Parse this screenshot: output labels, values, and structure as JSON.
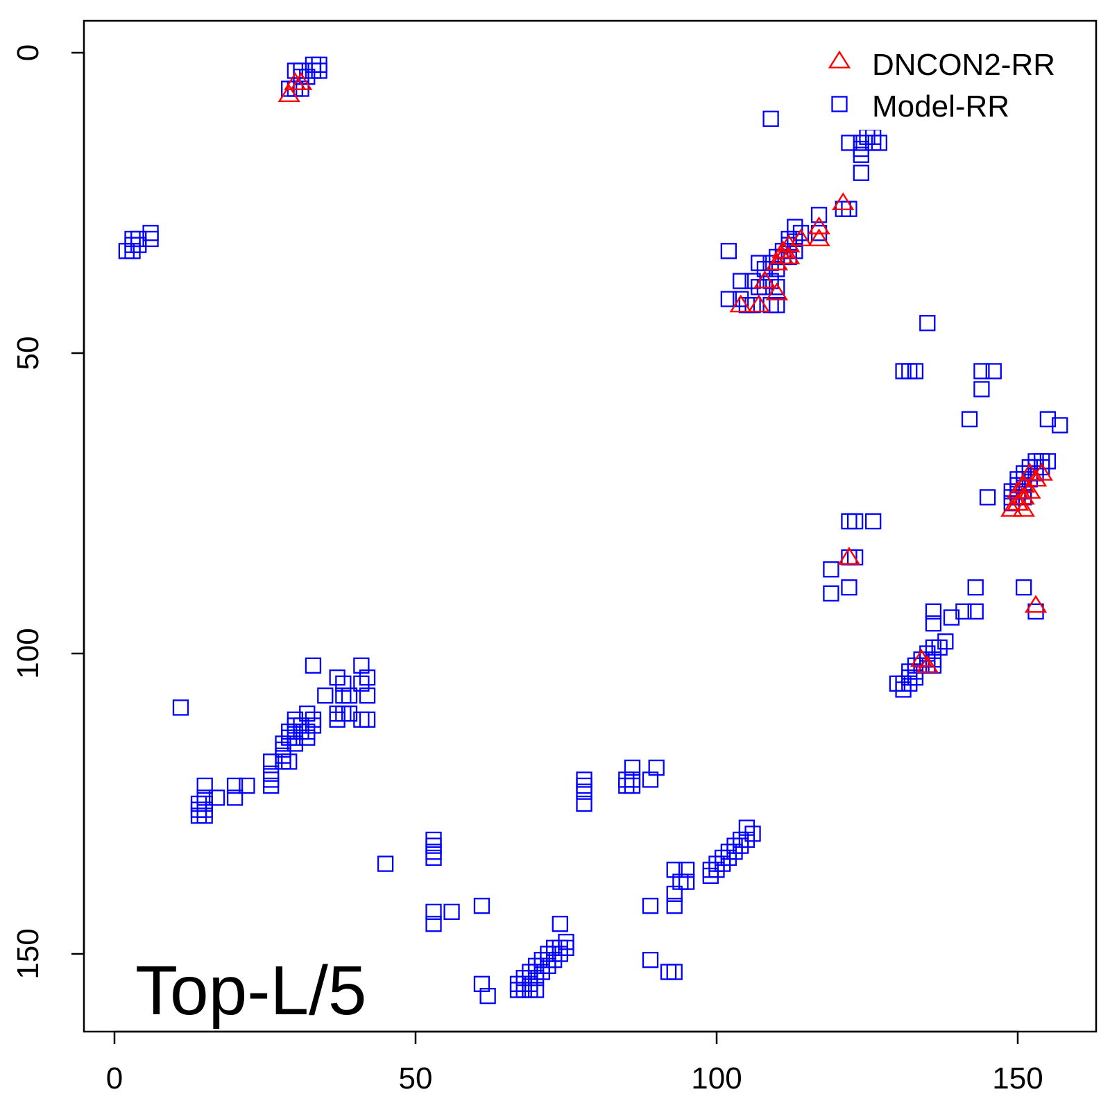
{
  "chart_data": {
    "type": "scatter",
    "title": "",
    "xlabel": "",
    "ylabel": "",
    "xlim": [
      -5,
      159
    ],
    "ylim": [
      163,
      -5
    ],
    "y_axis_inverted": true,
    "x_ticks": [
      "0",
      "50",
      "100",
      "150"
    ],
    "y_ticks": [
      "0",
      "50",
      "100",
      "150"
    ],
    "annotation": "Top-L/5",
    "legend": {
      "position": "top-right",
      "entries": [
        "DNCON2-RR",
        "Model-RR"
      ]
    },
    "series": [
      {
        "name": "DNCON2-RR",
        "marker": "triangle",
        "color": "#ff0000",
        "points": [
          [
            30,
            5
          ],
          [
            31,
            5
          ],
          [
            29,
            7
          ],
          [
            121,
            25
          ],
          [
            117,
            29
          ],
          [
            117,
            31
          ],
          [
            114,
            31
          ],
          [
            112,
            32
          ],
          [
            111,
            33
          ],
          [
            111,
            34
          ],
          [
            112,
            34
          ],
          [
            110,
            35
          ],
          [
            108,
            38
          ],
          [
            110,
            40
          ],
          [
            104,
            42
          ],
          [
            107,
            42
          ],
          [
            152,
            70
          ],
          [
            154,
            70
          ],
          [
            153,
            71
          ],
          [
            151,
            72
          ],
          [
            150,
            73
          ],
          [
            152,
            73
          ],
          [
            151,
            74
          ],
          [
            150,
            75
          ],
          [
            149,
            76
          ],
          [
            151,
            76
          ],
          [
            122,
            84
          ],
          [
            153,
            92
          ],
          [
            134,
            101
          ],
          [
            135,
            102
          ]
        ]
      },
      {
        "name": "Model-RR",
        "marker": "square",
        "color": "#0000ff",
        "points": [
          [
            30,
            3
          ],
          [
            31,
            3
          ],
          [
            33,
            2
          ],
          [
            34,
            2
          ],
          [
            33,
            3
          ],
          [
            34,
            3
          ],
          [
            31,
            4
          ],
          [
            32,
            4
          ],
          [
            29,
            6
          ],
          [
            30,
            6
          ],
          [
            31,
            6
          ],
          [
            109,
            11
          ],
          [
            125,
            14
          ],
          [
            126,
            14
          ],
          [
            127,
            15
          ],
          [
            122,
            15
          ],
          [
            124,
            15
          ],
          [
            126,
            15
          ],
          [
            124,
            16
          ],
          [
            124,
            17
          ],
          [
            124,
            20
          ],
          [
            121,
            26
          ],
          [
            122,
            26
          ],
          [
            117,
            27
          ],
          [
            113,
            29
          ],
          [
            114,
            30
          ],
          [
            117,
            30
          ],
          [
            112,
            31
          ],
          [
            113,
            31
          ],
          [
            112,
            32
          ],
          [
            111,
            33
          ],
          [
            112,
            33
          ],
          [
            113,
            33
          ],
          [
            110,
            34
          ],
          [
            111,
            34
          ],
          [
            112,
            34
          ],
          [
            102,
            33
          ],
          [
            107,
            35
          ],
          [
            109,
            35
          ],
          [
            108,
            36
          ],
          [
            110,
            36
          ],
          [
            104,
            38
          ],
          [
            106,
            38
          ],
          [
            109,
            38
          ],
          [
            107,
            39
          ],
          [
            108,
            39
          ],
          [
            110,
            39
          ],
          [
            102,
            41
          ],
          [
            104,
            41
          ],
          [
            105,
            42
          ],
          [
            106,
            42
          ],
          [
            109,
            42
          ],
          [
            110,
            42
          ],
          [
            135,
            45
          ],
          [
            131,
            53
          ],
          [
            132,
            53
          ],
          [
            133,
            53
          ],
          [
            144,
            53
          ],
          [
            146,
            53
          ],
          [
            144,
            56
          ],
          [
            142,
            61
          ],
          [
            155,
            61
          ],
          [
            157,
            62
          ],
          [
            153,
            68
          ],
          [
            154,
            68
          ],
          [
            155,
            68
          ],
          [
            152,
            69
          ],
          [
            153,
            69
          ],
          [
            154,
            69
          ],
          [
            151,
            70
          ],
          [
            152,
            70
          ],
          [
            153,
            70
          ],
          [
            150,
            71
          ],
          [
            151,
            71
          ],
          [
            152,
            71
          ],
          [
            150,
            72
          ],
          [
            151,
            72
          ],
          [
            149,
            73
          ],
          [
            150,
            73
          ],
          [
            151,
            73
          ],
          [
            145,
            74
          ],
          [
            149,
            74
          ],
          [
            150,
            74
          ],
          [
            151,
            74
          ],
          [
            149,
            75
          ],
          [
            122,
            78
          ],
          [
            123,
            78
          ],
          [
            126,
            78
          ],
          [
            122,
            84
          ],
          [
            123,
            84
          ],
          [
            119,
            86
          ],
          [
            122,
            89
          ],
          [
            119,
            90
          ],
          [
            143,
            89
          ],
          [
            151,
            89
          ],
          [
            141,
            93
          ],
          [
            143,
            93
          ],
          [
            136,
            93
          ],
          [
            136,
            95
          ],
          [
            139,
            94
          ],
          [
            153,
            93
          ],
          [
            138,
            98
          ],
          [
            136,
            99
          ],
          [
            137,
            99
          ],
          [
            135,
            100
          ],
          [
            134,
            101
          ],
          [
            135,
            101
          ],
          [
            136,
            101
          ],
          [
            133,
            102
          ],
          [
            134,
            102
          ],
          [
            135,
            102
          ],
          [
            136,
            102
          ],
          [
            132,
            103
          ],
          [
            133,
            103
          ],
          [
            132,
            104
          ],
          [
            133,
            104
          ],
          [
            130,
            105
          ],
          [
            131,
            105
          ],
          [
            132,
            105
          ],
          [
            131,
            106
          ],
          [
            33,
            102
          ],
          [
            41,
            102
          ],
          [
            37,
            104
          ],
          [
            42,
            104
          ],
          [
            38,
            105
          ],
          [
            41,
            105
          ],
          [
            35,
            107
          ],
          [
            38,
            107
          ],
          [
            39,
            107
          ],
          [
            42,
            107
          ],
          [
            11,
            109
          ],
          [
            32,
            110
          ],
          [
            37,
            110
          ],
          [
            38,
            110
          ],
          [
            39,
            110
          ],
          [
            30,
            111
          ],
          [
            33,
            111
          ],
          [
            37,
            111
          ],
          [
            41,
            111
          ],
          [
            42,
            111
          ],
          [
            30,
            112
          ],
          [
            31,
            112
          ],
          [
            33,
            112
          ],
          [
            29,
            113
          ],
          [
            30,
            113
          ],
          [
            31,
            113
          ],
          [
            32,
            113
          ],
          [
            29,
            114
          ],
          [
            30,
            114
          ],
          [
            32,
            114
          ],
          [
            28,
            115
          ],
          [
            30,
            115
          ],
          [
            28,
            116
          ],
          [
            28,
            117
          ],
          [
            26,
            118
          ],
          [
            28,
            118
          ],
          [
            29,
            118
          ],
          [
            26,
            120
          ],
          [
            26,
            121
          ],
          [
            26,
            122
          ],
          [
            15,
            122
          ],
          [
            20,
            122
          ],
          [
            22,
            122
          ],
          [
            15,
            124
          ],
          [
            17,
            124
          ],
          [
            20,
            124
          ],
          [
            14,
            125
          ],
          [
            15,
            125
          ],
          [
            14,
            126
          ],
          [
            15,
            126
          ],
          [
            14,
            127
          ],
          [
            15,
            127
          ],
          [
            86,
            119
          ],
          [
            90,
            119
          ],
          [
            85,
            121
          ],
          [
            86,
            121
          ],
          [
            89,
            121
          ],
          [
            78,
            121
          ],
          [
            78,
            122
          ],
          [
            85,
            122
          ],
          [
            86,
            122
          ],
          [
            78,
            123
          ],
          [
            78,
            125
          ],
          [
            105,
            129
          ],
          [
            106,
            130
          ],
          [
            104,
            131
          ],
          [
            105,
            131
          ],
          [
            103,
            132
          ],
          [
            104,
            132
          ],
          [
            102,
            133
          ],
          [
            103,
            133
          ],
          [
            101,
            134
          ],
          [
            102,
            134
          ],
          [
            100,
            135
          ],
          [
            101,
            135
          ],
          [
            93,
            136
          ],
          [
            95,
            136
          ],
          [
            99,
            136
          ],
          [
            100,
            136
          ],
          [
            99,
            137
          ],
          [
            94,
            138
          ],
          [
            95,
            138
          ],
          [
            93,
            140
          ],
          [
            89,
            142
          ],
          [
            93,
            142
          ],
          [
            53,
            131
          ],
          [
            53,
            132
          ],
          [
            53,
            133
          ],
          [
            53,
            134
          ],
          [
            45,
            135
          ],
          [
            61,
            142
          ],
          [
            53,
            143
          ],
          [
            56,
            143
          ],
          [
            53,
            145
          ],
          [
            74,
            145
          ],
          [
            75,
            148
          ],
          [
            74,
            149
          ],
          [
            75,
            149
          ],
          [
            73,
            149
          ],
          [
            72,
            150
          ],
          [
            73,
            150
          ],
          [
            74,
            150
          ],
          [
            71,
            151
          ],
          [
            72,
            151
          ],
          [
            73,
            151
          ],
          [
            70,
            152
          ],
          [
            71,
            152
          ],
          [
            72,
            152
          ],
          [
            69,
            153
          ],
          [
            70,
            153
          ],
          [
            71,
            153
          ],
          [
            68,
            154
          ],
          [
            69,
            154
          ],
          [
            70,
            154
          ],
          [
            67,
            155
          ],
          [
            68,
            155
          ],
          [
            69,
            155
          ],
          [
            67,
            156
          ],
          [
            68,
            156
          ],
          [
            69,
            156
          ],
          [
            70,
            156
          ],
          [
            89,
            151
          ],
          [
            92,
            153
          ],
          [
            93,
            153
          ],
          [
            61,
            155
          ],
          [
            62,
            157
          ],
          [
            2,
            33
          ],
          [
            3,
            33
          ],
          [
            3,
            32
          ],
          [
            4,
            32
          ],
          [
            3,
            31
          ],
          [
            6,
            31
          ],
          [
            4,
            31
          ],
          [
            6,
            30
          ]
        ]
      }
    ]
  }
}
